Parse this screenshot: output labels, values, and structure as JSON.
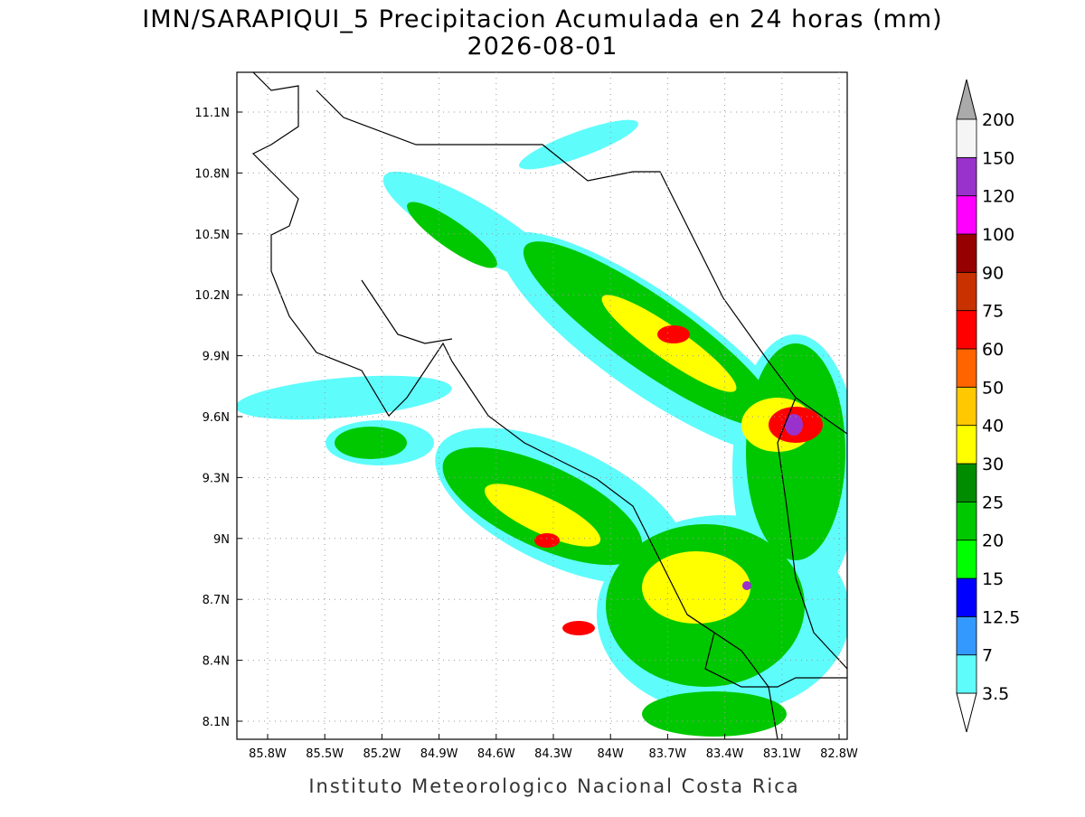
{
  "header": {
    "title": "IMN/SARAPIQUI_5 Precipitacion Acumulada en 24 horas (mm)",
    "subtitle": "2026-08-01"
  },
  "map": {
    "lat_labels": [
      "11.1N",
      "10.8N",
      "10.5N",
      "10.2N",
      "9.9N",
      "9.6N",
      "9.3N",
      "9N",
      "8.7N",
      "8.4N",
      "8.1N"
    ],
    "lon_labels": [
      "85.8W",
      "85.5W",
      "85.2W",
      "84.9W",
      "84.6W",
      "84.3W",
      "84W",
      "83.7W",
      "83.4W",
      "83.1W",
      "82.8W"
    ]
  },
  "colorbar": {
    "levels": [
      "3.5",
      "7",
      "12.5",
      "15",
      "20",
      "25",
      "30",
      "40",
      "50",
      "60",
      "75",
      "90",
      "100",
      "120",
      "150",
      "200"
    ],
    "colors": [
      "#5ffcfc",
      "#3399ff",
      "#0000ff",
      "#00ff00",
      "#00c800",
      "#008c00",
      "#ffff00",
      "#ffc800",
      "#ff6400",
      "#ff0000",
      "#c83200",
      "#960000",
      "#ff00ff",
      "#9932cc",
      "#f5f5f5"
    ],
    "over_color": "#aaaaaa"
  },
  "footer": "Instituto Meteorologico Nacional Costa Rica"
}
